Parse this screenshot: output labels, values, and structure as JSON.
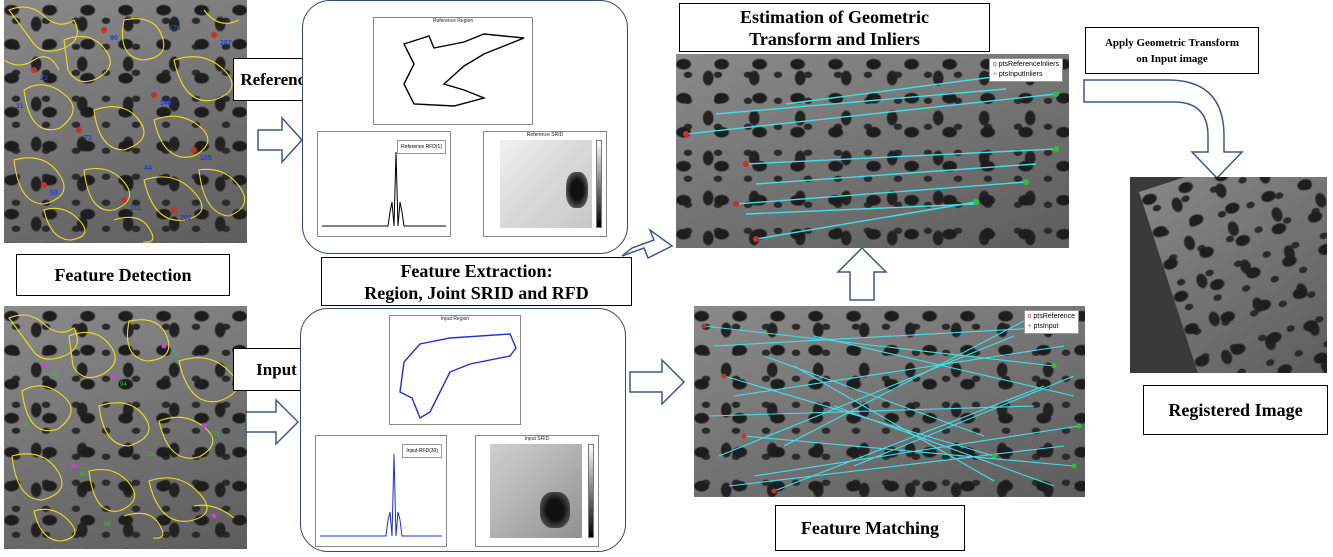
{
  "labels": {
    "reference": "Reference",
    "input": "Input",
    "feature_detection": "Feature Detection",
    "feature_extraction_line1": "Feature Extraction:",
    "feature_extraction_line2": "Region, Joint SRID  and  RFD",
    "estimation_line1": "Estimation of Geometric",
    "estimation_line2": "Transform and Inliers",
    "apply_line1": "Apply Geometric Transform",
    "apply_line2": "on Input image",
    "feature_matching": "Feature Matching",
    "registered_image": "Registered Image"
  },
  "plots": {
    "reference_region_title": "Reference Region",
    "reference_srid_title": "Reference SRID",
    "reference_rfd_legend": "Reference RFD(1)",
    "input_region_title": "Input Region",
    "input_srid_title": "Input SRID",
    "input_rfd_legend": "Input RFD(30)"
  },
  "legends": {
    "inliers_ref": "ptsReferenceInliers",
    "inliers_input": "ptsInputInliers",
    "match_ref": "ptsReference",
    "match_input": "ptsInput"
  },
  "colors": {
    "arrow": "#3b5a86",
    "region_ref": "#000000",
    "region_input": "#1f2fd0",
    "match_lines": "#3fe0ea",
    "seg_outline": "#e8e020"
  }
}
